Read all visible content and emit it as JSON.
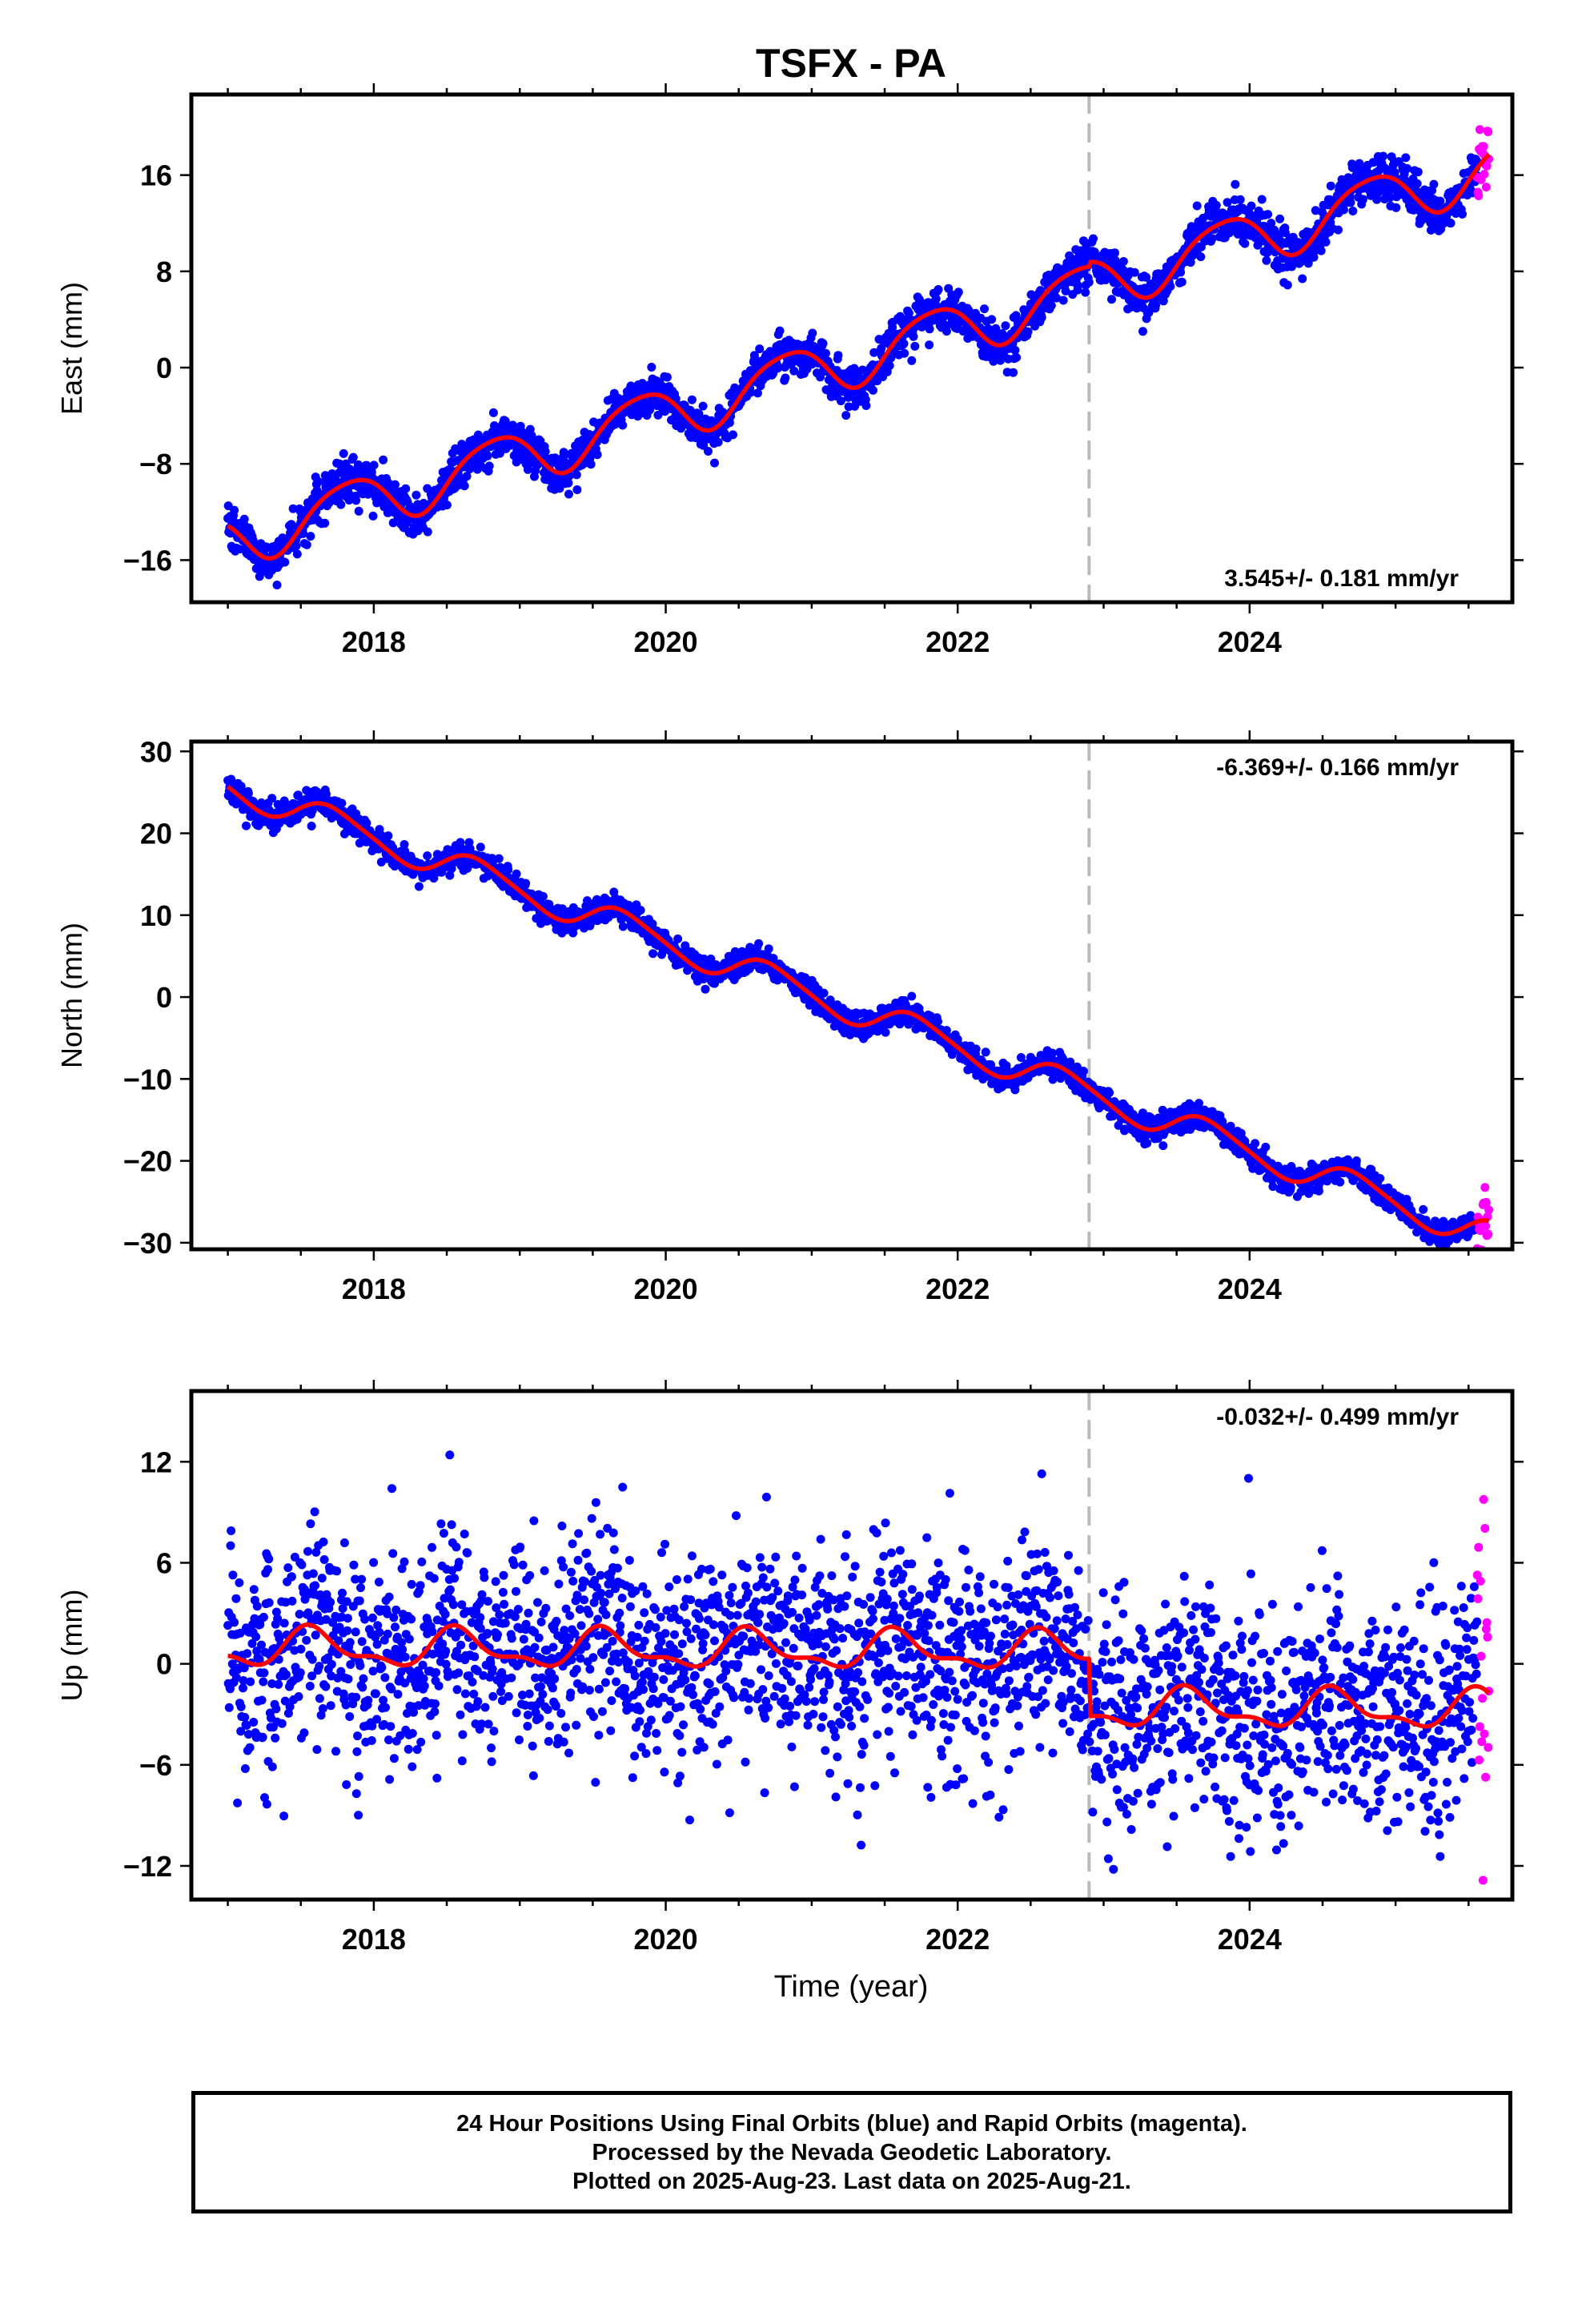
{
  "title": "TSFX - PA",
  "colors": {
    "final": "#0000ff",
    "rapid": "#ff00ff",
    "model": "#ff0000",
    "event": "#bbbbbb",
    "frame": "#000000"
  },
  "xlabel": "Time (year)",
  "xticks": [
    "2018",
    "2020",
    "2022",
    "2024"
  ],
  "event_line": 2022.9,
  "caption": {
    "line1": "24 Hour Positions Using Final Orbits (blue) and Rapid Orbits (magenta).",
    "line2": "Processed by the Nevada Geodetic Laboratory.",
    "line3": "Plotted on 2025-Aug-23. Last data on 2025-Aug-21."
  },
  "chart_data": [
    {
      "type": "scatter",
      "component": "east",
      "ylabel": "East (mm)",
      "rate_text": "3.545+/- 0.181 mm/yr",
      "rate_position": "bottom-right",
      "xlim": [
        2016.75,
        2025.8
      ],
      "ylim": [
        -19.5,
        22.7
      ],
      "yticks": [
        "16",
        "8",
        "0",
        "-8",
        "-16"
      ],
      "ytick_values": [
        16,
        8,
        0,
        -8,
        -16
      ],
      "start": 2017.0,
      "end_final": 2025.56,
      "end": 2025.64,
      "rate": 3.545,
      "intercept_at_2021": -0.2,
      "steps": [
        {
          "t": 2022.9,
          "dy": 0.4
        }
      ],
      "annual_amp": 2.2,
      "annual_phase": 2.7,
      "semiannual_amp": 0.35,
      "semiannual_phase": 1.0,
      "noise_sd": 0.9,
      "rapid_noise_sd": 1.6,
      "rapid_offset": 1.5
    },
    {
      "type": "scatter",
      "component": "north",
      "ylabel": "North (mm)",
      "rate_text": "-6.369+/- 0.166 mm/yr",
      "rate_position": "top-right",
      "xlim": [
        2016.75,
        2025.8
      ],
      "ylim": [
        -30.8,
        31.2
      ],
      "yticks": [
        "30",
        "20",
        "10",
        "0",
        "-10",
        "-20",
        "-30"
      ],
      "ytick_values": [
        30,
        20,
        10,
        0,
        -10,
        -20,
        -30
      ],
      "start": 2017.0,
      "end_final": 2025.56,
      "end": 2025.64,
      "rate": -6.369,
      "intercept_at_2021": 0.4,
      "steps": [
        {
          "t": 2022.9,
          "dy": 0.0
        }
      ],
      "annual_amp": 1.85,
      "annual_phase": 3.3,
      "semiannual_amp": 0.3,
      "semiannual_phase": 0.4,
      "noise_sd": 0.75,
      "rapid_noise_sd": 2.0,
      "rapid_offset": -0.5
    },
    {
      "type": "scatter",
      "component": "up",
      "ylabel": "Up (mm)",
      "rate_text": "-0.032+/- 0.499 mm/yr",
      "rate_position": "top-right",
      "xlim": [
        2016.75,
        2025.8
      ],
      "ylim": [
        -14.0,
        16.2
      ],
      "yticks": [
        "12",
        "6",
        "0",
        "-6",
        "-12"
      ],
      "ytick_values": [
        12,
        6,
        0,
        -6,
        -12
      ],
      "start": 2017.0,
      "end_final": 2025.56,
      "end": 2025.64,
      "rate": -0.032,
      "intercept_at_2021": 0.8,
      "steps": [
        {
          "t": 2022.9,
          "dy": -3.4
        }
      ],
      "annual_amp": 1.0,
      "annual_phase": 4.2,
      "semiannual_amp": 0.45,
      "semiannual_phase": 1.2,
      "noise_sd": 3.2,
      "rapid_noise_sd": 5.5,
      "rapid_offset": 6.0
    }
  ]
}
